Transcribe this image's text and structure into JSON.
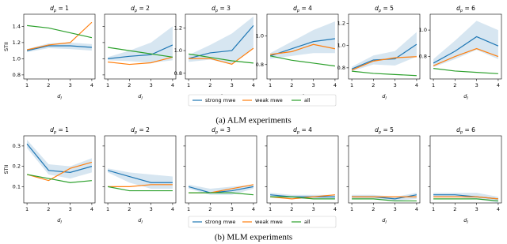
{
  "chart_data": [
    {
      "type": "line",
      "title": {
        "symbol": "d",
        "subscript": "p",
        "text": " = 1"
      },
      "ylabel": "STII",
      "xlabel": {
        "symbol": "d",
        "subscript": "l"
      },
      "x": [
        1,
        2,
        3,
        4
      ],
      "xlim": [
        0.85,
        4.15
      ],
      "xticks": [
        1,
        2,
        3,
        4
      ],
      "ylim": [
        0.75,
        1.55
      ],
      "yticks": [
        0.8,
        {
          "value": 1,
          "label": "1.0"
        },
        1.2,
        1.4
      ],
      "ytick_labels": true,
      "series": [
        {
          "name": "strong mwe",
          "color": "#1f77b4",
          "values": [
            1.1,
            1.16,
            1.16,
            1.14
          ],
          "lower": [
            1.08,
            1.13,
            1.12,
            1.1
          ],
          "upper": [
            1.12,
            1.19,
            1.2,
            1.18
          ]
        },
        {
          "name": "weak mwe",
          "color": "#ff7f0e",
          "values": [
            1.11,
            1.17,
            1.2,
            1.45
          ]
        },
        {
          "name": "all",
          "color": "#2ca02c",
          "values": [
            1.41,
            1.38,
            1.32,
            1.26
          ]
        }
      ]
    },
    {
      "type": "line",
      "title": {
        "symbol": "d",
        "subscript": "p",
        "text": " = 2"
      },
      "xlabel": {
        "symbol": "d",
        "subscript": "l"
      },
      "x": [
        1,
        2,
        3,
        4
      ],
      "xlim": [
        0.85,
        4.15
      ],
      "xticks": [
        1,
        2,
        3,
        4
      ],
      "ylim": [
        0.75,
        1.55
      ],
      "yticks": [
        0.8,
        {
          "value": 1,
          "label": "1.0"
        },
        1.2,
        1.4
      ],
      "ytick_labels": false,
      "series": [
        {
          "color": "#1f77b4",
          "values": [
            1.0,
            1.03,
            1.05,
            1.17
          ],
          "lower": [
            0.98,
            0.97,
            0.95,
            0.98
          ],
          "upper": [
            1.02,
            1.1,
            1.2,
            1.4
          ]
        },
        {
          "color": "#ff7f0e",
          "values": [
            0.96,
            0.93,
            0.95,
            1.02
          ]
        },
        {
          "color": "#2ca02c",
          "values": [
            1.14,
            1.1,
            1.06,
            1.02
          ]
        }
      ]
    },
    {
      "type": "line",
      "title": {
        "symbol": "d",
        "subscript": "p",
        "text": " = 3"
      },
      "xlabel": {
        "symbol": "d",
        "subscript": "l"
      },
      "x": [
        1,
        2,
        3,
        4
      ],
      "xlim": [
        0.85,
        4.15
      ],
      "xticks": [
        1,
        2,
        3,
        4
      ],
      "ylim": [
        0.75,
        1.32
      ],
      "yticks": [
        0.8,
        {
          "value": 1,
          "label": "1.0"
        },
        1.2
      ],
      "ytick_labels": true,
      "series": [
        {
          "color": "#1f77b4",
          "values": [
            0.93,
            0.98,
            1.0,
            1.22
          ],
          "lower": [
            0.9,
            0.92,
            0.88,
            1.02
          ],
          "upper": [
            0.96,
            1.05,
            1.15,
            1.3
          ]
        },
        {
          "color": "#ff7f0e",
          "values": [
            0.93,
            0.93,
            0.88,
            1.02
          ]
        },
        {
          "color": "#2ca02c",
          "values": [
            0.97,
            0.94,
            0.91,
            0.89
          ]
        }
      ]
    },
    {
      "type": "line",
      "title": {
        "symbol": "d",
        "subscript": "p",
        "text": " = 4"
      },
      "xlabel": {
        "symbol": "d",
        "subscript": "l"
      },
      "x": [
        1,
        2,
        3,
        4
      ],
      "xlim": [
        0.85,
        4.15
      ],
      "xticks": [
        1,
        2,
        3,
        4
      ],
      "ylim": [
        0.7,
        1.15
      ],
      "yticks": [
        0.8,
        {
          "value": 1,
          "label": "1.0"
        }
      ],
      "ytick_labels": true,
      "series": [
        {
          "color": "#1f77b4",
          "values": [
            0.86,
            0.91,
            0.96,
            0.98
          ],
          "lower": [
            0.84,
            0.86,
            0.88,
            0.88
          ],
          "upper": [
            0.88,
            0.96,
            1.04,
            1.1
          ]
        },
        {
          "color": "#ff7f0e",
          "values": [
            0.87,
            0.89,
            0.94,
            0.91
          ]
        },
        {
          "color": "#2ca02c",
          "values": [
            0.86,
            0.83,
            0.81,
            0.79
          ]
        }
      ]
    },
    {
      "type": "line",
      "title": {
        "symbol": "d",
        "subscript": "p",
        "text": " = 5"
      },
      "xlabel": {
        "symbol": "d",
        "subscript": "l"
      },
      "x": [
        1,
        2,
        3,
        4
      ],
      "xlim": [
        0.85,
        4.15
      ],
      "xticks": [
        1,
        2,
        3,
        4
      ],
      "ylim": [
        0.7,
        1.28
      ],
      "yticks": [
        0.8,
        {
          "value": 1,
          "label": "1.0"
        },
        1.2
      ],
      "ytick_labels": true,
      "series": [
        {
          "color": "#1f77b4",
          "values": [
            0.79,
            0.87,
            0.88,
            1.01
          ],
          "lower": [
            0.77,
            0.83,
            0.82,
            0.9
          ],
          "upper": [
            0.81,
            0.91,
            0.95,
            1.12
          ]
        },
        {
          "color": "#ff7f0e",
          "values": [
            0.78,
            0.86,
            0.89,
            0.9
          ]
        },
        {
          "color": "#2ca02c",
          "values": [
            0.77,
            0.75,
            0.74,
            0.73
          ]
        }
      ]
    },
    {
      "type": "line",
      "title": {
        "symbol": "d",
        "subscript": "p",
        "text": " = 6"
      },
      "xlabel": {
        "symbol": "d",
        "subscript": "l"
      },
      "x": [
        1,
        2,
        3,
        4
      ],
      "xlim": [
        0.85,
        4.15
      ],
      "xticks": [
        1,
        2,
        3,
        4
      ],
      "ylim": [
        0.63,
        1.12
      ],
      "yticks": [
        0.8,
        {
          "value": 1,
          "label": "1.0"
        }
      ],
      "ytick_labels": true,
      "series": [
        {
          "color": "#1f77b4",
          "values": [
            0.75,
            0.84,
            0.95,
            0.88
          ],
          "lower": [
            0.72,
            0.78,
            0.85,
            0.78
          ],
          "upper": [
            0.78,
            0.92,
            1.07,
            1.0
          ]
        },
        {
          "color": "#ff7f0e",
          "values": [
            0.73,
            0.8,
            0.86,
            0.8
          ]
        },
        {
          "color": "#2ca02c",
          "values": [
            0.71,
            0.69,
            0.68,
            0.67
          ]
        }
      ]
    },
    {
      "type": "line",
      "title": {
        "symbol": "d",
        "subscript": "p",
        "text": " = 1"
      },
      "ylabel": "STII",
      "xlabel": {
        "symbol": "d",
        "subscript": "l"
      },
      "x": [
        1,
        2,
        3,
        4
      ],
      "xlim": [
        0.85,
        4.15
      ],
      "xticks": [
        1,
        2,
        3,
        4
      ],
      "ylim": [
        0.02,
        0.35
      ],
      "yticks": [
        0.1,
        0.2,
        0.3
      ],
      "ytick_labels": true,
      "series": [
        {
          "name": "strong mwe",
          "color": "#1f77b4",
          "values": [
            0.31,
            0.18,
            0.17,
            0.2
          ],
          "lower": [
            0.29,
            0.16,
            0.14,
            0.17
          ],
          "upper": [
            0.33,
            0.21,
            0.2,
            0.24
          ]
        },
        {
          "name": "weak mwe",
          "color": "#ff7f0e",
          "values": [
            0.16,
            0.13,
            0.19,
            0.22
          ]
        },
        {
          "name": "all",
          "color": "#2ca02c",
          "values": [
            0.16,
            0.14,
            0.12,
            0.13
          ]
        }
      ]
    },
    {
      "type": "line",
      "title": {
        "symbol": "d",
        "subscript": "p",
        "text": " = 2"
      },
      "xlabel": {
        "symbol": "d",
        "subscript": "l"
      },
      "x": [
        1,
        2,
        3,
        4
      ],
      "xlim": [
        0.85,
        4.15
      ],
      "xticks": [
        1,
        2,
        3,
        4
      ],
      "ylim": [
        0.02,
        0.35
      ],
      "yticks": [
        0.1,
        0.2,
        0.3
      ],
      "ytick_labels": false,
      "series": [
        {
          "color": "#1f77b4",
          "values": [
            0.18,
            0.15,
            0.12,
            0.12
          ],
          "lower": [
            0.17,
            0.12,
            0.09,
            0.09
          ],
          "upper": [
            0.19,
            0.17,
            0.16,
            0.15
          ]
        },
        {
          "color": "#ff7f0e",
          "values": [
            0.1,
            0.1,
            0.11,
            0.11
          ]
        },
        {
          "color": "#2ca02c",
          "values": [
            0.1,
            0.08,
            0.08,
            0.08
          ]
        }
      ]
    },
    {
      "type": "line",
      "title": {
        "symbol": "d",
        "subscript": "p",
        "text": " = 3"
      },
      "xlabel": {
        "symbol": "d",
        "subscript": "l"
      },
      "x": [
        1,
        2,
        3,
        4
      ],
      "xlim": [
        0.85,
        4.15
      ],
      "xticks": [
        1,
        2,
        3,
        4
      ],
      "ylim": [
        0.02,
        0.35
      ],
      "yticks": [
        0.1,
        0.2,
        0.3
      ],
      "ytick_labels": false,
      "series": [
        {
          "color": "#1f77b4",
          "values": [
            0.1,
            0.07,
            0.08,
            0.1
          ],
          "lower": [
            0.09,
            0.06,
            0.06,
            0.09
          ],
          "upper": [
            0.11,
            0.09,
            0.1,
            0.11
          ]
        },
        {
          "color": "#ff7f0e",
          "values": [
            0.07,
            0.07,
            0.09,
            0.11
          ]
        },
        {
          "color": "#2ca02c",
          "values": [
            0.07,
            0.07,
            0.07,
            0.06
          ]
        }
      ]
    },
    {
      "type": "line",
      "title": {
        "symbol": "d",
        "subscript": "p",
        "text": " = 4"
      },
      "xlabel": {
        "symbol": "d",
        "subscript": "l"
      },
      "x": [
        1,
        2,
        3,
        4
      ],
      "xlim": [
        0.85,
        4.15
      ],
      "xticks": [
        1,
        2,
        3,
        4
      ],
      "ylim": [
        0.02,
        0.35
      ],
      "yticks": [
        0.1,
        0.2,
        0.3
      ],
      "ytick_labels": false,
      "series": [
        {
          "color": "#1f77b4",
          "values": [
            0.06,
            0.05,
            0.05,
            0.05
          ],
          "lower": [
            0.05,
            0.04,
            0.04,
            0.04
          ],
          "upper": [
            0.07,
            0.06,
            0.06,
            0.06
          ]
        },
        {
          "color": "#ff7f0e",
          "values": [
            0.05,
            0.04,
            0.05,
            0.06
          ]
        },
        {
          "color": "#2ca02c",
          "values": [
            0.05,
            0.05,
            0.04,
            0.04
          ]
        }
      ]
    },
    {
      "type": "line",
      "title": {
        "symbol": "d",
        "subscript": "p",
        "text": " = 5"
      },
      "xlabel": {
        "symbol": "d",
        "subscript": "l"
      },
      "x": [
        1,
        2,
        3,
        4
      ],
      "xlim": [
        0.85,
        4.15
      ],
      "xticks": [
        1,
        2,
        3,
        4
      ],
      "ylim": [
        0.02,
        0.35
      ],
      "yticks": [
        0.1,
        0.2,
        0.3
      ],
      "ytick_labels": false,
      "series": [
        {
          "color": "#1f77b4",
          "values": [
            0.05,
            0.05,
            0.04,
            0.06
          ],
          "lower": [
            0.04,
            0.04,
            0.03,
            0.04
          ],
          "upper": [
            0.06,
            0.06,
            0.05,
            0.07
          ]
        },
        {
          "color": "#ff7f0e",
          "values": [
            0.05,
            0.05,
            0.05,
            0.05
          ]
        },
        {
          "color": "#2ca02c",
          "values": [
            0.04,
            0.04,
            0.03,
            0.03
          ]
        }
      ]
    },
    {
      "type": "line",
      "title": {
        "symbol": "d",
        "subscript": "p",
        "text": " = 6"
      },
      "xlabel": {
        "symbol": "d",
        "subscript": "l"
      },
      "x": [
        1,
        2,
        3,
        4
      ],
      "xlim": [
        0.85,
        4.15
      ],
      "xticks": [
        1,
        2,
        3,
        4
      ],
      "ylim": [
        0.02,
        0.35
      ],
      "yticks": [
        0.1,
        0.2,
        0.3
      ],
      "ytick_labels": false,
      "series": [
        {
          "color": "#1f77b4",
          "values": [
            0.06,
            0.06,
            0.05,
            0.04
          ],
          "lower": [
            0.05,
            0.05,
            0.04,
            0.02
          ],
          "upper": [
            0.07,
            0.07,
            0.07,
            0.05
          ]
        },
        {
          "color": "#ff7f0e",
          "values": [
            0.05,
            0.05,
            0.05,
            0.04
          ]
        },
        {
          "color": "#2ca02c",
          "values": [
            0.04,
            0.04,
            0.04,
            0.03
          ]
        }
      ]
    }
  ],
  "captions": [
    "(a) ALM experiments",
    "(b) MLM experiments"
  ]
}
